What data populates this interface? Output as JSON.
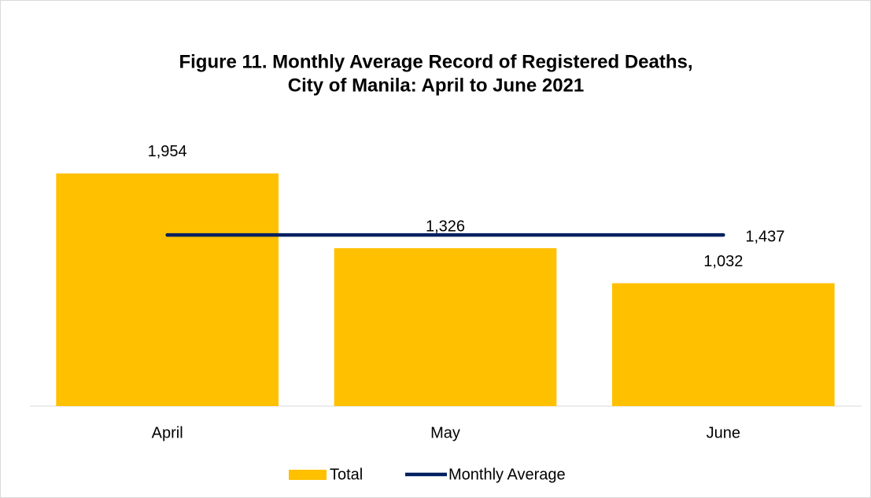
{
  "chart_data": {
    "type": "bar_line",
    "title": [
      "Figure 11. Monthly Average Record of Registered Deaths,",
      "City of Manila: April to June 2021"
    ],
    "categories": [
      "April",
      "May",
      "June"
    ],
    "series": [
      {
        "name": "Total",
        "type": "bar",
        "color": "#ffc000",
        "values": [
          1954,
          1326,
          1032
        ],
        "value_labels": [
          "1,954",
          "1,326",
          "1,032"
        ]
      },
      {
        "name": "Monthly Average",
        "type": "line",
        "color": "#002060",
        "values": [
          1437,
          1437,
          1437
        ],
        "value_labels": [
          null,
          null,
          "1,437"
        ]
      }
    ],
    "ylim": [
      0,
      2500
    ],
    "legend": "bottom"
  }
}
